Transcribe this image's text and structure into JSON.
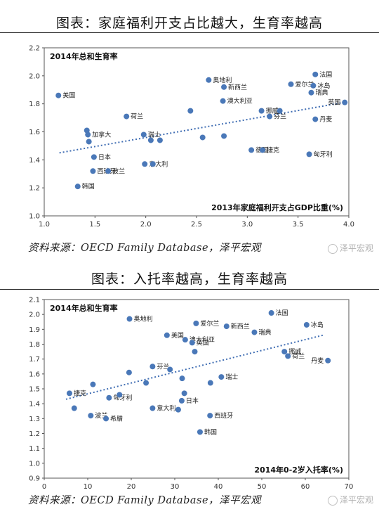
{
  "header1": {
    "title": "图表：家庭福利开支占比越大，生育率越高"
  },
  "header2": {
    "title": "图表：入托率越高，生育率越高"
  },
  "source1": "资料来源：OECD Family Database，泽平宏观",
  "source2": "资料来源：OECD Family Database，泽平宏观",
  "watermark": "泽平宏观",
  "colors": {
    "point": "#4a78b8",
    "trend": "#3f6db3",
    "axis": "#555555"
  },
  "chart_data": [
    {
      "type": "scatter",
      "ylabel": "2014年总和生育率",
      "xlabel": "2013年家庭福利开支占GDP比重(%)",
      "xlim": [
        1.0,
        4.0
      ],
      "ylim": [
        1.0,
        2.2
      ],
      "xticks": [
        "1.0",
        "1.5",
        "2.0",
        "2.5",
        "3.0",
        "3.5",
        "4.0"
      ],
      "yticks": [
        "1.0",
        "1.2",
        "1.4",
        "1.6",
        "1.8",
        "2.0",
        "2.2"
      ],
      "trend": {
        "x": [
          1.15,
          3.95
        ],
        "y": [
          1.45,
          1.81
        ]
      },
      "points": [
        {
          "x": 1.14,
          "y": 1.86,
          "label": "美国"
        },
        {
          "x": 1.42,
          "y": 1.61,
          "label": ""
        },
        {
          "x": 1.43,
          "y": 1.58,
          "label": "加拿大"
        },
        {
          "x": 1.44,
          "y": 1.53,
          "label": ""
        },
        {
          "x": 1.49,
          "y": 1.42,
          "label": "日本"
        },
        {
          "x": 1.48,
          "y": 1.32,
          "label": "西班牙"
        },
        {
          "x": 1.33,
          "y": 1.21,
          "label": "韩国"
        },
        {
          "x": 1.63,
          "y": 1.32,
          "label": "波兰"
        },
        {
          "x": 1.81,
          "y": 1.71,
          "label": "荷兰"
        },
        {
          "x": 1.98,
          "y": 1.58,
          "label": "瑞士"
        },
        {
          "x": 2.05,
          "y": 1.54,
          "label": ""
        },
        {
          "x": 2.14,
          "y": 1.54,
          "label": ""
        },
        {
          "x": 1.99,
          "y": 1.37,
          "label": "意大利"
        },
        {
          "x": 2.07,
          "y": 1.37,
          "label": ""
        },
        {
          "x": 2.44,
          "y": 1.75,
          "label": ""
        },
        {
          "x": 2.56,
          "y": 1.56,
          "label": ""
        },
        {
          "x": 2.62,
          "y": 1.97,
          "label": "奥地利"
        },
        {
          "x": 2.77,
          "y": 1.92,
          "label": "新西兰"
        },
        {
          "x": 2.76,
          "y": 1.82,
          "label": "澳大利亚"
        },
        {
          "x": 2.77,
          "y": 1.57,
          "label": ""
        },
        {
          "x": 3.04,
          "y": 1.47,
          "label": "德国"
        },
        {
          "x": 3.15,
          "y": 1.47,
          "label": "捷克"
        },
        {
          "x": 3.14,
          "y": 1.75,
          "label": "挪威"
        },
        {
          "x": 3.22,
          "y": 1.71,
          "label": "芬兰"
        },
        {
          "x": 3.32,
          "y": 1.75,
          "label": ""
        },
        {
          "x": 3.43,
          "y": 1.94,
          "label": "爱尔兰"
        },
        {
          "x": 3.67,
          "y": 2.01,
          "label": "法国"
        },
        {
          "x": 3.65,
          "y": 1.93,
          "label": "冰岛"
        },
        {
          "x": 3.63,
          "y": 1.88,
          "label": "瑞典"
        },
        {
          "x": 3.96,
          "y": 1.81,
          "label": "英国"
        },
        {
          "x": 3.67,
          "y": 1.69,
          "label": "丹麦"
        },
        {
          "x": 3.61,
          "y": 1.44,
          "label": "匈牙利"
        }
      ]
    },
    {
      "type": "scatter",
      "ylabel": "2014年总和生育率",
      "xlabel": "2014年0-2岁入托率(%)",
      "xlim": [
        0,
        70
      ],
      "ylim": [
        0.9,
        2.1
      ],
      "xticks": [
        "0",
        "10",
        "20",
        "30",
        "40",
        "50",
        "60",
        "70"
      ],
      "yticks": [
        "0.9",
        "1.0",
        "1.1",
        "1.2",
        "1.3",
        "1.4",
        "1.5",
        "1.6",
        "1.7",
        "1.8",
        "1.9",
        "2.0",
        "2.1"
      ],
      "trend": {
        "x": [
          5,
          64
        ],
        "y": [
          1.43,
          1.86
        ]
      },
      "points": [
        {
          "x": 5.8,
          "y": 1.47,
          "label": "捷克"
        },
        {
          "x": 6.9,
          "y": 1.37,
          "label": ""
        },
        {
          "x": 11.2,
          "y": 1.53,
          "label": ""
        },
        {
          "x": 10.7,
          "y": 1.32,
          "label": "波兰"
        },
        {
          "x": 14.2,
          "y": 1.3,
          "label": "希腊"
        },
        {
          "x": 14.9,
          "y": 1.44,
          "label": "匈牙利"
        },
        {
          "x": 17.3,
          "y": 1.46,
          "label": ""
        },
        {
          "x": 19.6,
          "y": 1.97,
          "label": "奥地利"
        },
        {
          "x": 19.5,
          "y": 1.61,
          "label": ""
        },
        {
          "x": 23.4,
          "y": 1.54,
          "label": ""
        },
        {
          "x": 24.9,
          "y": 1.65,
          "label": "芬兰"
        },
        {
          "x": 24.9,
          "y": 1.37,
          "label": "意大利"
        },
        {
          "x": 28.2,
          "y": 1.86,
          "label": "美国"
        },
        {
          "x": 28.9,
          "y": 1.63,
          "label": ""
        },
        {
          "x": 31.7,
          "y": 1.57,
          "label": ""
        },
        {
          "x": 32.2,
          "y": 1.47,
          "label": ""
        },
        {
          "x": 32.4,
          "y": 1.83,
          "label": "澳大利亚"
        },
        {
          "x": 34.0,
          "y": 1.81,
          "label": "英国"
        },
        {
          "x": 34.6,
          "y": 1.75,
          "label": ""
        },
        {
          "x": 34.9,
          "y": 1.94,
          "label": "爱尔兰"
        },
        {
          "x": 31.6,
          "y": 1.42,
          "label": "日本"
        },
        {
          "x": 30.8,
          "y": 1.36,
          "label": ""
        },
        {
          "x": 35.8,
          "y": 1.21,
          "label": "韩国"
        },
        {
          "x": 38.1,
          "y": 1.32,
          "label": "西班牙"
        },
        {
          "x": 38.2,
          "y": 1.54,
          "label": ""
        },
        {
          "x": 40.7,
          "y": 1.58,
          "label": "瑞士"
        },
        {
          "x": 41.9,
          "y": 1.92,
          "label": "新西兰"
        },
        {
          "x": 48.3,
          "y": 1.88,
          "label": "瑞典"
        },
        {
          "x": 52.2,
          "y": 2.01,
          "label": "法国"
        },
        {
          "x": 55.2,
          "y": 1.75,
          "label": "挪威"
        },
        {
          "x": 56.0,
          "y": 1.72,
          "label": "荷兰"
        },
        {
          "x": 60.3,
          "y": 1.93,
          "label": "冰岛"
        },
        {
          "x": 65.2,
          "y": 1.69,
          "label": "丹麦"
        }
      ]
    }
  ]
}
